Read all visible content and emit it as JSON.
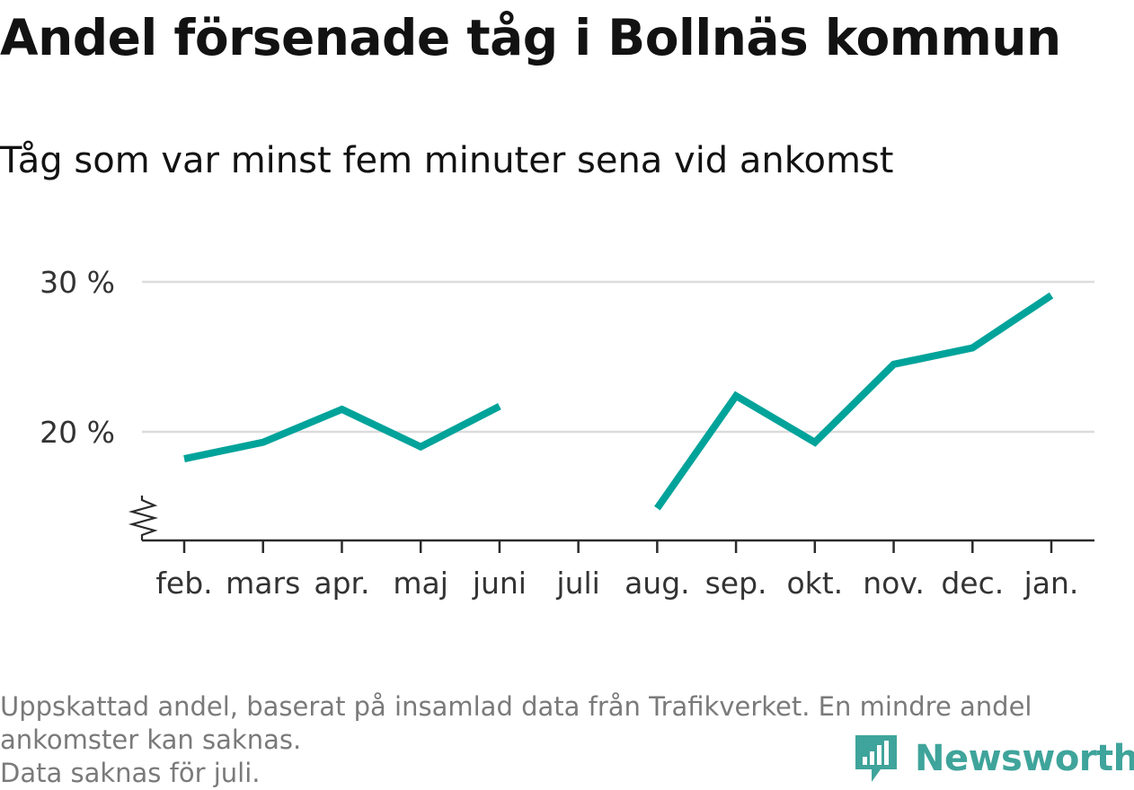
{
  "title": "Andel försenade tåg i Bollnäs kommun",
  "subtitle": "Tåg som var minst fem minuter sena vid ankomst",
  "colors": {
    "line": "#00a39a",
    "grid": "#dcdcdc",
    "axis": "#2b2b2b",
    "brand": "#3fa49b",
    "footnote": "#7a7a7a"
  },
  "chart_data": {
    "type": "line",
    "categories": [
      "feb.",
      "mars",
      "apr.",
      "maj",
      "juni",
      "juli",
      "aug.",
      "sep.",
      "okt.",
      "nov.",
      "dec.",
      "jan."
    ],
    "series": [
      {
        "values": [
          18.2,
          19.3,
          21.5,
          19.0,
          21.7,
          null,
          14.9,
          22.4,
          19.3,
          24.5,
          25.6,
          29.1
        ]
      }
    ],
    "yticks": [
      20,
      30
    ],
    "ytick_labels": [
      "20 %",
      "30 %"
    ],
    "ylim": [
      13,
      30
    ],
    "y_axis_break": true,
    "grid": "horizontal",
    "xlabel": "",
    "ylabel": ""
  },
  "footer": {
    "note_line1": "Uppskattad andel, baserat på insamlad data från Trafikverket. En mindre andel",
    "note_line2": "ankomster kan saknas.",
    "note_line3": "Data saknas för juli."
  },
  "brand": {
    "name": "Newsworthy",
    "icon": "newsworthy-logo-icon"
  }
}
